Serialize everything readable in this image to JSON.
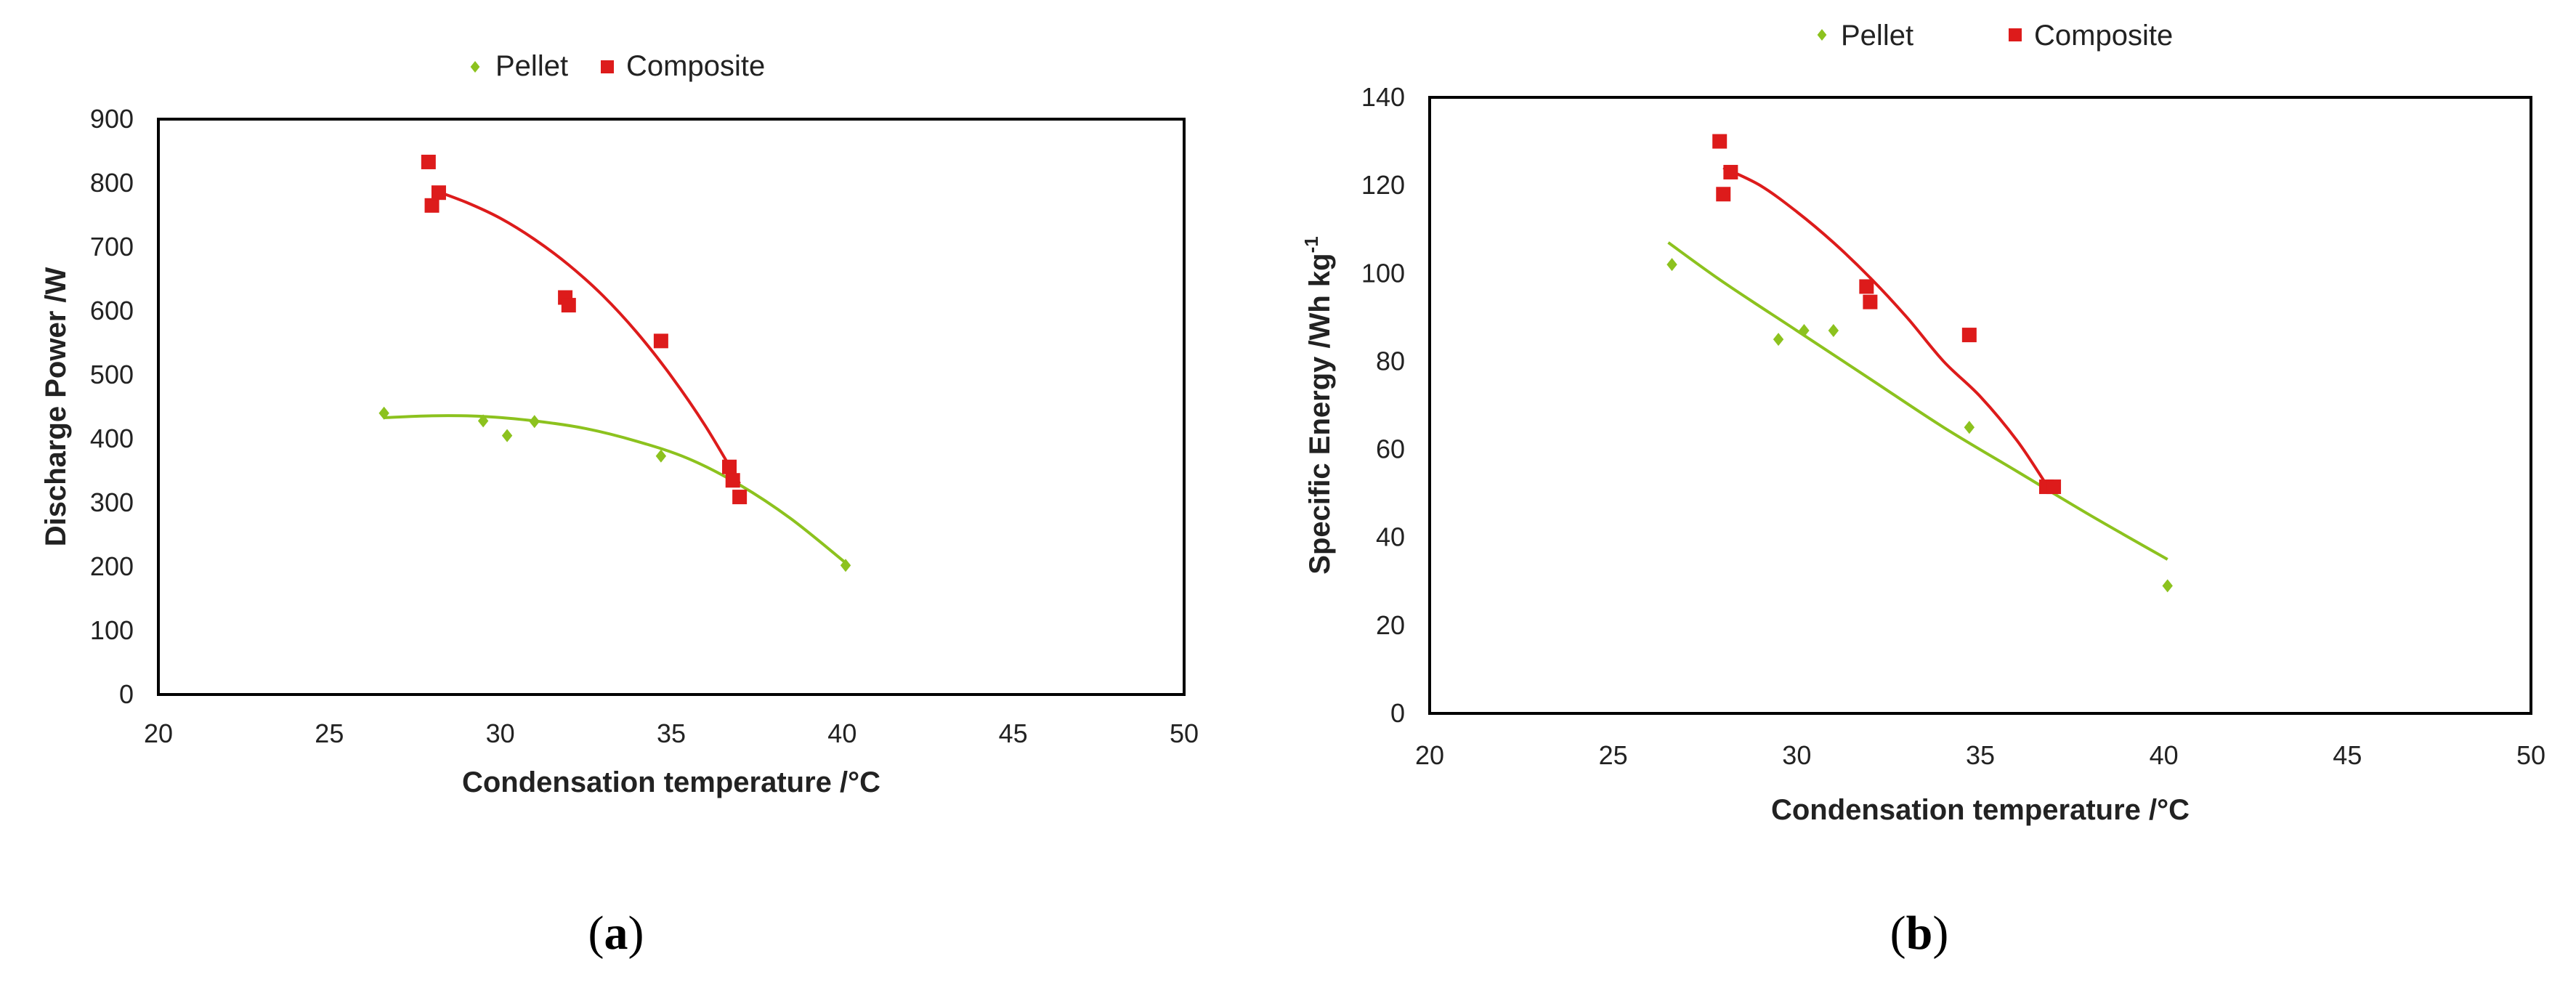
{
  "colors": {
    "pellet": "#8cc21e",
    "composite": "#dd1b1b",
    "axis": "#000000",
    "text": "#222222"
  },
  "chart_data": [
    {
      "id": "a",
      "type": "scatter",
      "panel_label": "a",
      "title": "",
      "xlabel": "Condensation temperature /°C",
      "ylabel": "Discharge Power /W",
      "xlim": [
        20,
        50
      ],
      "ylim": [
        0,
        900
      ],
      "xticks": [
        20,
        25,
        30,
        35,
        40,
        45,
        50
      ],
      "yticks": [
        0,
        100,
        200,
        300,
        400,
        500,
        600,
        700,
        800,
        900
      ],
      "legend": {
        "position": "top-center",
        "entries": [
          "Pellet",
          "Composite"
        ]
      },
      "grid": false,
      "series": [
        {
          "name": "Pellet",
          "marker": "diamond",
          "color_key": "pellet",
          "points": [
            [
              26.6,
              440
            ],
            [
              29.5,
              428
            ],
            [
              30.2,
              405
            ],
            [
              31.0,
              427
            ],
            [
              34.7,
              373
            ],
            [
              40.1,
              202
            ]
          ],
          "fit": [
            [
              26.6,
              433
            ],
            [
              28.0,
              436
            ],
            [
              29.5,
              435
            ],
            [
              31.0,
              428
            ],
            [
              32.5,
              416
            ],
            [
              34.0,
              396
            ],
            [
              35.5,
              369
            ],
            [
              37.0,
              328
            ],
            [
              38.5,
              275
            ],
            [
              40.1,
              206
            ]
          ]
        },
        {
          "name": "Composite",
          "marker": "square",
          "color_key": "composite",
          "points": [
            [
              27.9,
              833
            ],
            [
              28.0,
              765
            ],
            [
              28.2,
              785
            ],
            [
              31.9,
              621
            ],
            [
              32.0,
              609
            ],
            [
              34.7,
              553
            ],
            [
              36.7,
              356
            ],
            [
              36.8,
              335
            ],
            [
              37.0,
              309
            ]
          ],
          "fit": [
            [
              28.0,
              790
            ],
            [
              29.0,
              770
            ],
            [
              30.0,
              745
            ],
            [
              31.0,
              712
            ],
            [
              32.0,
              672
            ],
            [
              33.0,
              624
            ],
            [
              34.0,
              566
            ],
            [
              35.0,
              498
            ],
            [
              36.0,
              420
            ],
            [
              37.0,
              330
            ]
          ]
        }
      ]
    },
    {
      "id": "b",
      "type": "scatter",
      "panel_label": "b",
      "title": "",
      "xlabel": "Condensation temperature /°C",
      "ylabel": "Specific Energy /Wh kg",
      "ylabel_superscript": "-1",
      "xlim": [
        20,
        50
      ],
      "ylim": [
        0,
        140
      ],
      "xticks": [
        20,
        25,
        30,
        35,
        40,
        45,
        50
      ],
      "yticks": [
        0,
        20,
        40,
        60,
        80,
        100,
        120,
        140
      ],
      "legend": {
        "position": "top-center",
        "entries": [
          "Pellet",
          "Composite"
        ]
      },
      "grid": false,
      "series": [
        {
          "name": "Pellet",
          "marker": "diamond",
          "color_key": "pellet",
          "points": [
            [
              26.6,
              102
            ],
            [
              29.5,
              85
            ],
            [
              30.2,
              87
            ],
            [
              31.0,
              87
            ],
            [
              34.7,
              65
            ],
            [
              40.1,
              29
            ]
          ],
          "fit": [
            [
              26.5,
              107
            ],
            [
              28.0,
              98
            ],
            [
              30.0,
              87
            ],
            [
              32.0,
              76
            ],
            [
              34.0,
              65
            ],
            [
              36.0,
              55
            ],
            [
              38.0,
              45
            ],
            [
              40.1,
              35
            ]
          ]
        },
        {
          "name": "Composite",
          "marker": "square",
          "color_key": "composite",
          "points": [
            [
              27.9,
              130
            ],
            [
              28.0,
              118
            ],
            [
              28.2,
              123
            ],
            [
              31.9,
              97
            ],
            [
              32.0,
              93.5
            ],
            [
              34.7,
              86
            ],
            [
              36.8,
              51.5
            ],
            [
              37.0,
              51.5
            ]
          ],
          "fit": [
            [
              28.0,
              124
            ],
            [
              29.0,
              120
            ],
            [
              30.0,
              114
            ],
            [
              31.0,
              107
            ],
            [
              32.0,
              99
            ],
            [
              33.0,
              90
            ],
            [
              34.0,
              80
            ],
            [
              35.0,
              72
            ],
            [
              36.0,
              62
            ],
            [
              36.8,
              52
            ]
          ]
        }
      ]
    }
  ]
}
